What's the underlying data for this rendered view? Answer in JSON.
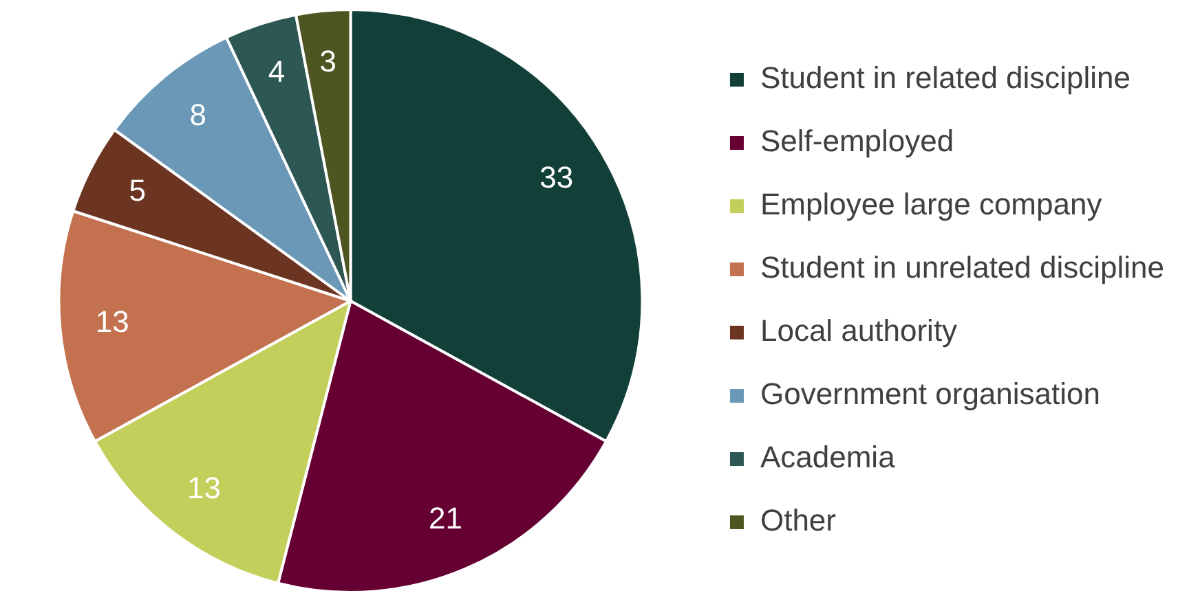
{
  "chart_data": {
    "type": "pie",
    "categories": [
      "Student in related discipline",
      "Self-employed",
      "Employee large company",
      "Student in unrelated discipline",
      "Local authority",
      "Government organisation",
      "Academia",
      "Other"
    ],
    "values": [
      33,
      21,
      13,
      13,
      5,
      8,
      4,
      3
    ],
    "colors": [
      "#123f38",
      "#660033",
      "#c3cf5b",
      "#c4714f",
      "#6b3522",
      "#6a98b6",
      "#2d5752",
      "#4e5521"
    ],
    "data_labels": true,
    "legend": "right"
  }
}
